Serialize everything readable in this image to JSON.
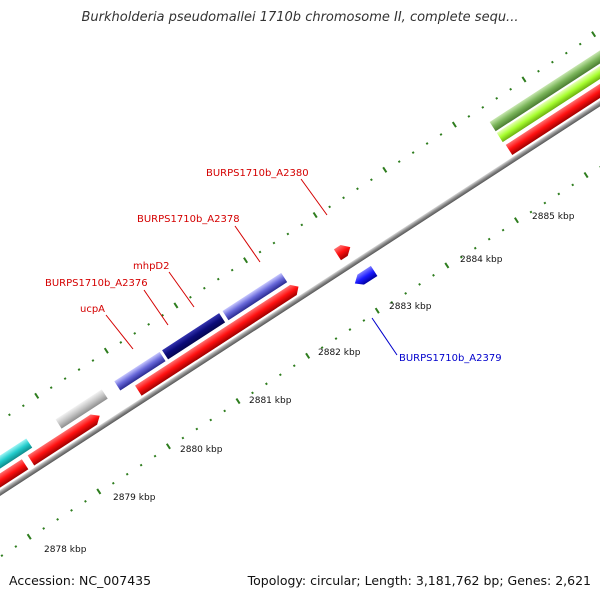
{
  "title": "Burkholderia pseudomallei 1710b chromosome II, complete sequ...",
  "footer": {
    "accession": "Accession: NC_007435",
    "summary": "Topology: circular; Length: 3,181,762 bp; Genes: 2,621"
  },
  "colors": {
    "forward_gene": "#ff1a1a",
    "reverse_gene": "#1a1aff",
    "forward_label": "#d40000",
    "reverse_label": "#0000cc",
    "dark_navy": "#0b0b7a",
    "light_blue": "#6f6fd8",
    "gray": "#bdbdbd",
    "cyan": "#2fd0d0",
    "green_dark": "#6fae4a",
    "green_light": "#a6ff3a",
    "tick": "#2e7d1e",
    "backbone": "#8a8a8a"
  },
  "ticks": [
    {
      "kbp": 2878,
      "label": "2878 kbp"
    },
    {
      "kbp": 2879,
      "label": "2879 kbp"
    },
    {
      "kbp": 2880,
      "label": "2880 kbp"
    },
    {
      "kbp": 2881,
      "label": "2881 kbp"
    },
    {
      "kbp": 2882,
      "label": "2882 kbp"
    },
    {
      "kbp": 2883,
      "label": "2883 kbp"
    },
    {
      "kbp": 2884,
      "label": "2884 kbp"
    },
    {
      "kbp": 2885,
      "label": "2885 kbp"
    }
  ],
  "gene_labels": [
    {
      "id": "BURPS1710b_A2380",
      "text": "BURPS1710b_A2380",
      "strand": "forward"
    },
    {
      "id": "BURPS1710b_A2378",
      "text": "BURPS1710b_A2378",
      "strand": "forward"
    },
    {
      "id": "mhpD2",
      "text": "mhpD2",
      "strand": "forward"
    },
    {
      "id": "BURPS1710b_A2376",
      "text": "BURPS1710b_A2376",
      "strand": "forward"
    },
    {
      "id": "ucpA",
      "text": "ucpA",
      "strand": "forward"
    },
    {
      "id": "BURPS1710b_A2379",
      "text": "BURPS1710b_A2379",
      "strand": "reverse"
    }
  ]
}
